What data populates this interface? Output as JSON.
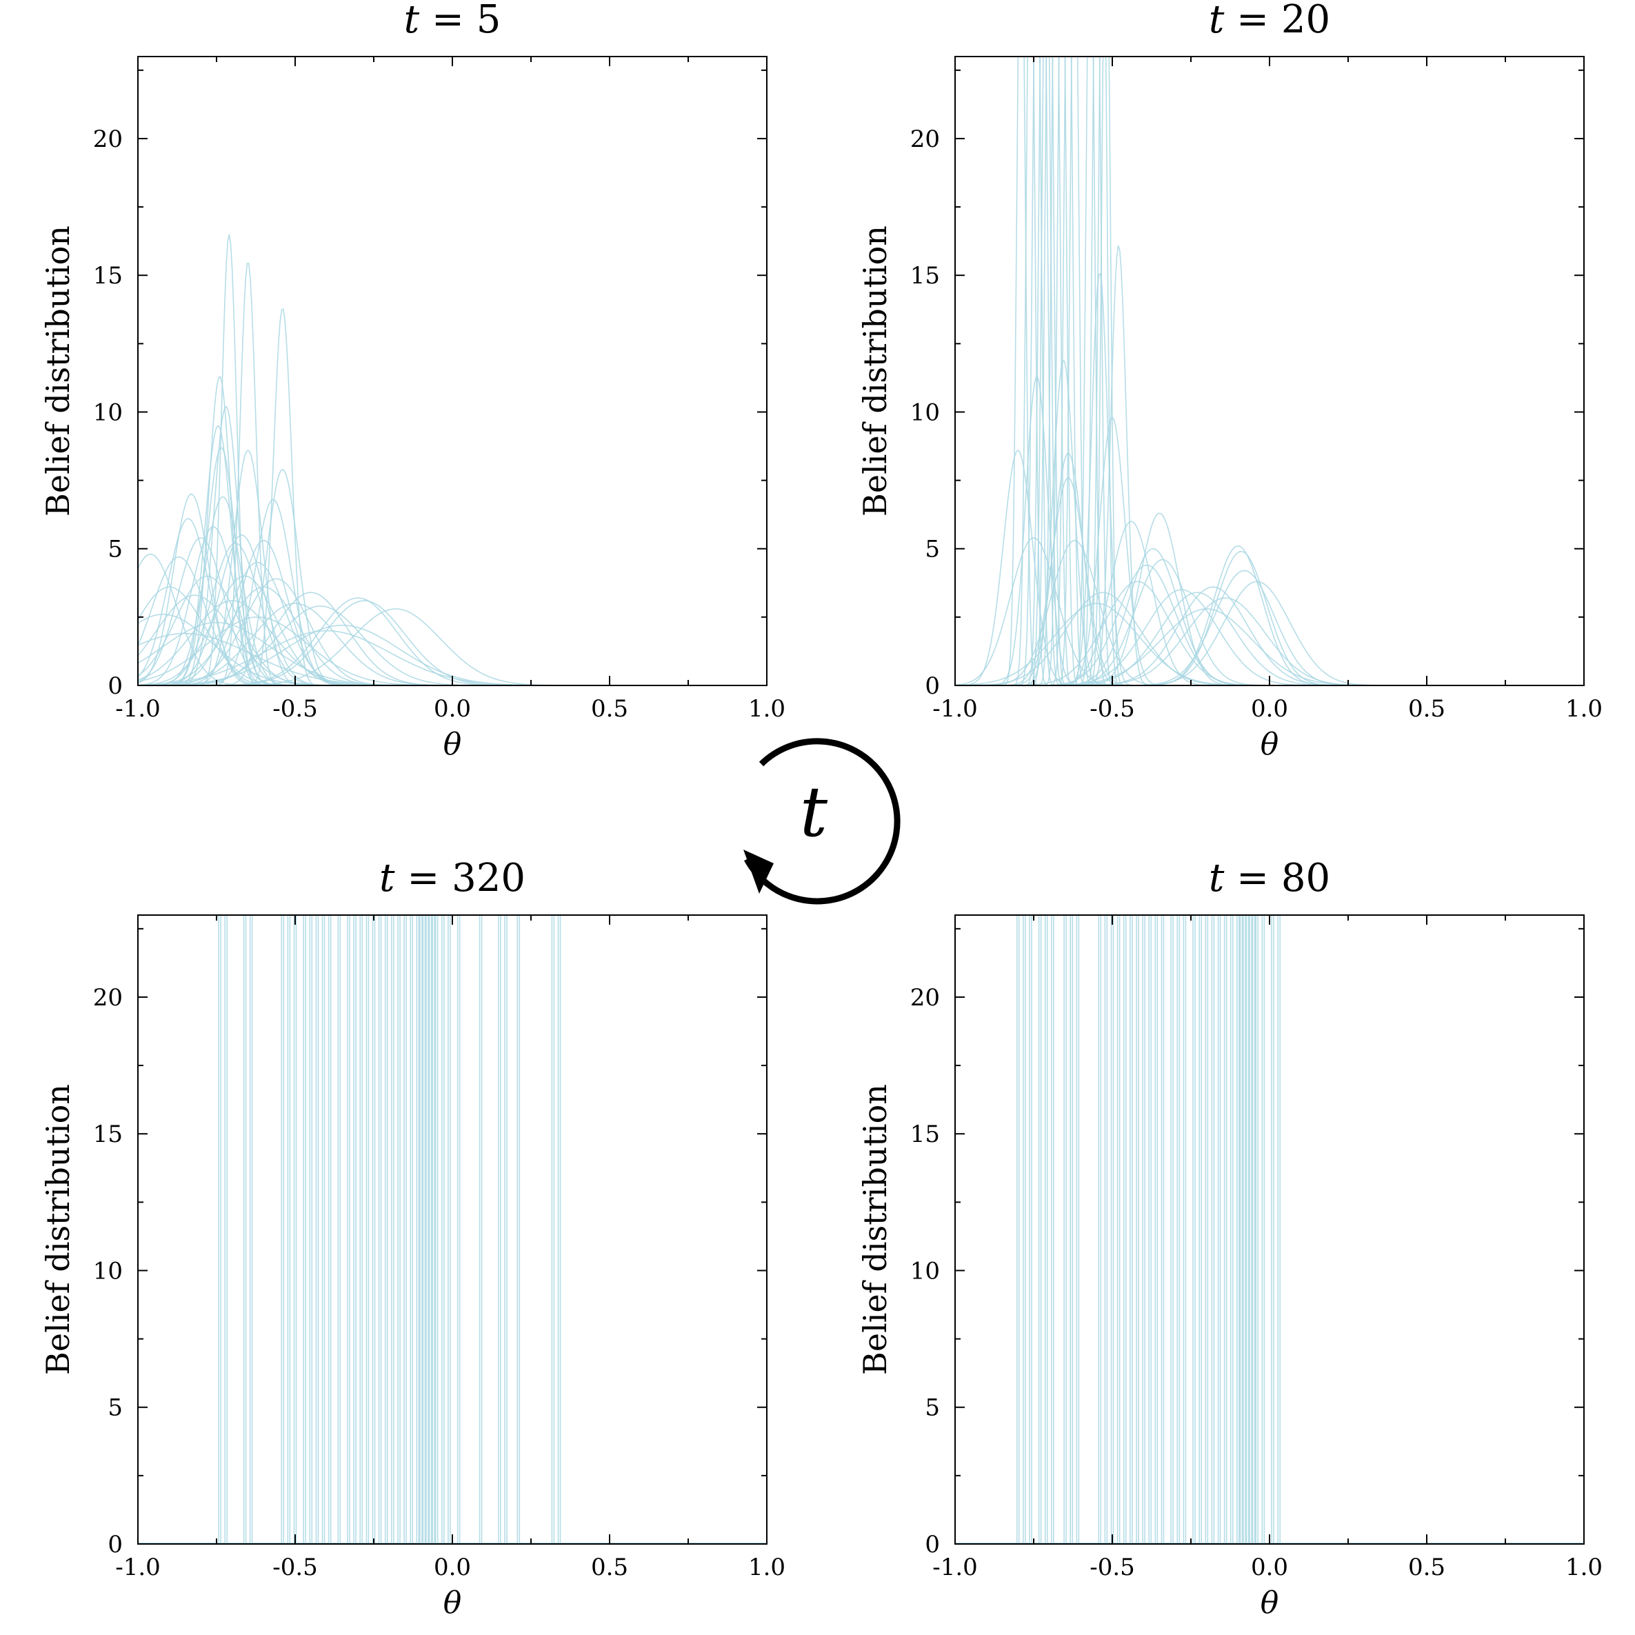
{
  "figure": {
    "cycle_label": "t",
    "curve_color": "#a9d7e3",
    "axis_color": "#000000"
  },
  "chart_data": [
    {
      "type": "line",
      "title": {
        "var": "t",
        "op": " = ",
        "value": "5"
      },
      "xlabel": "θ",
      "ylabel": "Belief distribution",
      "xlim": [
        -1.0,
        1.0
      ],
      "ylim": [
        0,
        23
      ],
      "xticks": [
        "-1.0",
        "-0.5",
        "0.0",
        "0.5",
        "1.0"
      ],
      "xtick_values": [
        -1.0,
        -0.5,
        0.0,
        0.5,
        1.0
      ],
      "yticks": [
        "0",
        "5",
        "10",
        "15",
        "20"
      ],
      "ytick_values": [
        0,
        5,
        10,
        15,
        20
      ],
      "series": [
        {
          "mu": -0.96,
          "peak": 4.8
        },
        {
          "mu": -0.83,
          "peak": 7.0
        },
        {
          "mu": -0.84,
          "peak": 6.1
        },
        {
          "mu": -0.8,
          "peak": 5.4
        },
        {
          "mu": -0.87,
          "peak": 4.7
        },
        {
          "mu": -0.9,
          "peak": 3.6
        },
        {
          "mu": -0.92,
          "peak": 2.6
        },
        {
          "mu": -0.82,
          "peak": 3.3
        },
        {
          "mu": -0.78,
          "peak": 4.0
        },
        {
          "mu": -0.76,
          "peak": 5.8
        },
        {
          "mu": -0.74,
          "peak": 11.3
        },
        {
          "mu": -0.745,
          "peak": 9.5
        },
        {
          "mu": -0.735,
          "peak": 8.7
        },
        {
          "mu": -0.72,
          "peak": 10.2
        },
        {
          "mu": -0.71,
          "peak": 16.5
        },
        {
          "mu": -0.73,
          "peak": 6.9
        },
        {
          "mu": -0.69,
          "peak": 5.2
        },
        {
          "mu": -0.67,
          "peak": 5.5
        },
        {
          "mu": -0.65,
          "peak": 15.5
        },
        {
          "mu": -0.65,
          "peak": 8.6
        },
        {
          "mu": -0.62,
          "peak": 4.5
        },
        {
          "mu": -0.6,
          "peak": 5.3
        },
        {
          "mu": -0.57,
          "peak": 6.8
        },
        {
          "mu": -0.54,
          "peak": 13.8
        },
        {
          "mu": -0.54,
          "peak": 7.9
        },
        {
          "mu": -0.56,
          "peak": 3.9
        },
        {
          "mu": -0.6,
          "peak": 3.6
        },
        {
          "mu": -0.7,
          "peak": 3.1
        },
        {
          "mu": -0.5,
          "peak": 3.0
        },
        {
          "mu": -0.45,
          "peak": 3.4
        },
        {
          "mu": -0.42,
          "peak": 2.9
        },
        {
          "mu": -0.3,
          "peak": 3.2
        },
        {
          "mu": -0.28,
          "peak": 3.1
        },
        {
          "mu": -0.18,
          "peak": 2.8
        },
        {
          "mu": -0.35,
          "peak": 2.2
        },
        {
          "mu": -0.4,
          "peak": 2.0
        },
        {
          "mu": -0.62,
          "peak": 2.5
        },
        {
          "mu": -0.75,
          "peak": 2.3
        },
        {
          "mu": -0.85,
          "peak": 1.9
        },
        {
          "mu": -0.66,
          "peak": 4.0
        }
      ]
    },
    {
      "type": "line",
      "title": {
        "var": "t",
        "op": " = ",
        "value": "20"
      },
      "xlabel": "θ",
      "ylabel": "Belief distribution",
      "xlim": [
        -1.0,
        1.0
      ],
      "ylim": [
        0,
        23
      ],
      "xticks": [
        "-1.0",
        "-0.5",
        "0.0",
        "0.5",
        "1.0"
      ],
      "xtick_values": [
        -1.0,
        -0.5,
        0.0,
        0.5,
        1.0
      ],
      "yticks": [
        "0",
        "5",
        "10",
        "15",
        "20"
      ],
      "ytick_values": [
        0,
        5,
        10,
        15,
        20
      ],
      "series": [
        {
          "mu": -0.8,
          "peak": 8.6
        },
        {
          "mu": -0.79,
          "peak": 30
        },
        {
          "mu": -0.76,
          "peak": 30
        },
        {
          "mu": -0.74,
          "peak": 30
        },
        {
          "mu": -0.72,
          "peak": 30
        },
        {
          "mu": -0.71,
          "peak": 30
        },
        {
          "mu": -0.7,
          "peak": 30
        },
        {
          "mu": -0.68,
          "peak": 30
        },
        {
          "mu": -0.66,
          "peak": 30
        },
        {
          "mu": -0.64,
          "peak": 30
        },
        {
          "mu": -0.62,
          "peak": 30
        },
        {
          "mu": -0.57,
          "peak": 30
        },
        {
          "mu": -0.55,
          "peak": 30
        },
        {
          "mu": -0.53,
          "peak": 30
        },
        {
          "mu": -0.52,
          "peak": 30
        },
        {
          "mu": -0.74,
          "peak": 11.3
        },
        {
          "mu": -0.655,
          "peak": 11.9
        },
        {
          "mu": -0.64,
          "peak": 8.5
        },
        {
          "mu": -0.64,
          "peak": 7.6
        },
        {
          "mu": -0.75,
          "peak": 5.4
        },
        {
          "mu": -0.62,
          "peak": 5.3
        },
        {
          "mu": -0.54,
          "peak": 15.1
        },
        {
          "mu": -0.48,
          "peak": 16.1
        },
        {
          "mu": -0.5,
          "peak": 9.8
        },
        {
          "mu": -0.44,
          "peak": 6.0
        },
        {
          "mu": -0.35,
          "peak": 6.3
        },
        {
          "mu": -0.37,
          "peak": 5.0
        },
        {
          "mu": -0.34,
          "peak": 4.6
        },
        {
          "mu": -0.39,
          "peak": 4.4
        },
        {
          "mu": -0.42,
          "peak": 3.8
        },
        {
          "mu": -0.53,
          "peak": 3.4
        },
        {
          "mu": -0.55,
          "peak": 3.0
        },
        {
          "mu": -0.28,
          "peak": 3.5
        },
        {
          "mu": -0.23,
          "peak": 3.4
        },
        {
          "mu": -0.18,
          "peak": 3.6
        },
        {
          "mu": -0.1,
          "peak": 5.1
        },
        {
          "mu": -0.09,
          "peak": 4.9
        },
        {
          "mu": -0.08,
          "peak": 4.2
        },
        {
          "mu": -0.04,
          "peak": 3.8
        },
        {
          "mu": -0.14,
          "peak": 3.2
        },
        {
          "mu": -0.2,
          "peak": 2.8
        }
      ]
    },
    {
      "type": "line",
      "title": {
        "var": "t",
        "op": " = ",
        "value": "320"
      },
      "xlabel": "θ",
      "ylabel": "Belief distribution",
      "xlim": [
        -1.0,
        1.0
      ],
      "ylim": [
        0,
        23
      ],
      "xticks": [
        "-1.0",
        "-0.5",
        "0.0",
        "0.5",
        "1.0"
      ],
      "xtick_values": [
        -1.0,
        -0.5,
        0.0,
        0.5,
        1.0
      ],
      "yticks": [
        "0",
        "5",
        "10",
        "15",
        "20"
      ],
      "ytick_values": [
        0,
        5,
        10,
        15,
        20
      ],
      "spike_positions": [
        -0.74,
        -0.72,
        -0.66,
        -0.64,
        -0.54,
        -0.52,
        -0.5,
        -0.47,
        -0.45,
        -0.43,
        -0.41,
        -0.39,
        -0.36,
        -0.33,
        -0.31,
        -0.29,
        -0.27,
        -0.25,
        -0.23,
        -0.21,
        -0.19,
        -0.17,
        -0.15,
        -0.13,
        -0.11,
        -0.1,
        -0.09,
        -0.08,
        -0.07,
        -0.06,
        -0.05,
        -0.03,
        -0.01,
        0.02,
        0.09,
        0.15,
        0.17,
        0.21,
        0.32,
        0.34
      ]
    },
    {
      "type": "line",
      "title": {
        "var": "t",
        "op": " = ",
        "value": "80"
      },
      "xlabel": "θ",
      "ylabel": "Belief distribution",
      "xlim": [
        -1.0,
        1.0
      ],
      "ylim": [
        0,
        23
      ],
      "xticks": [
        "-1.0",
        "-0.5",
        "0.0",
        "0.5",
        "1.0"
      ],
      "xtick_values": [
        -1.0,
        -0.5,
        0.0,
        0.5,
        1.0
      ],
      "yticks": [
        "0",
        "5",
        "10",
        "15",
        "20"
      ],
      "ytick_values": [
        0,
        5,
        10,
        15,
        20
      ],
      "spike_positions": [
        -0.8,
        -0.78,
        -0.76,
        -0.73,
        -0.71,
        -0.69,
        -0.65,
        -0.63,
        -0.61,
        -0.54,
        -0.52,
        -0.5,
        -0.48,
        -0.46,
        -0.44,
        -0.42,
        -0.4,
        -0.38,
        -0.36,
        -0.34,
        -0.31,
        -0.29,
        -0.27,
        -0.24,
        -0.22,
        -0.2,
        -0.18,
        -0.16,
        -0.14,
        -0.12,
        -0.1,
        -0.09,
        -0.08,
        -0.07,
        -0.06,
        -0.05,
        -0.04,
        -0.02,
        0.01,
        0.03
      ]
    }
  ]
}
